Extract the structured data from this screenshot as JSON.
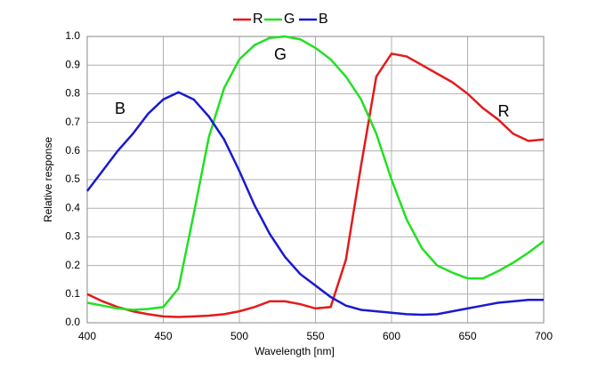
{
  "chart_data": {
    "type": "line",
    "x_label": "Wavelength [nm]",
    "y_label": "Relative response",
    "x": [
      400,
      410,
      420,
      430,
      440,
      450,
      460,
      470,
      480,
      490,
      500,
      510,
      520,
      530,
      540,
      550,
      560,
      570,
      580,
      590,
      600,
      610,
      620,
      630,
      640,
      650,
      660,
      670,
      680,
      690,
      700
    ],
    "series": [
      {
        "name": "R",
        "color": "#e41a1c",
        "values": [
          0.1,
          0.075,
          0.055,
          0.04,
          0.03,
          0.022,
          0.02,
          0.022,
          0.025,
          0.03,
          0.04,
          0.055,
          0.075,
          0.075,
          0.065,
          0.05,
          0.055,
          0.22,
          0.55,
          0.86,
          0.94,
          0.93,
          0.9,
          0.87,
          0.84,
          0.8,
          0.75,
          0.71,
          0.66,
          0.635,
          0.64
        ]
      },
      {
        "name": "G",
        "color": "#22e022",
        "values": [
          0.07,
          0.06,
          0.05,
          0.045,
          0.048,
          0.055,
          0.12,
          0.38,
          0.65,
          0.82,
          0.92,
          0.97,
          0.995,
          1.0,
          0.99,
          0.96,
          0.92,
          0.86,
          0.78,
          0.66,
          0.5,
          0.36,
          0.26,
          0.2,
          0.175,
          0.155,
          0.155,
          0.18,
          0.21,
          0.245,
          0.285
        ]
      },
      {
        "name": "B",
        "color": "#1a1ad0",
        "values": [
          0.46,
          0.53,
          0.6,
          0.66,
          0.73,
          0.78,
          0.805,
          0.78,
          0.72,
          0.64,
          0.53,
          0.41,
          0.31,
          0.23,
          0.17,
          0.13,
          0.09,
          0.06,
          0.045,
          0.04,
          0.035,
          0.03,
          0.028,
          0.03,
          0.04,
          0.05,
          0.06,
          0.07,
          0.075,
          0.08,
          0.08
        ]
      }
    ],
    "xlim": [
      400,
      700
    ],
    "xticks": [
      400,
      450,
      500,
      550,
      600,
      650,
      700
    ],
    "ylim": [
      0,
      1
    ],
    "yticks": [
      {
        "value": 0,
        "label": "0.0"
      },
      0.1,
      0.2,
      0.3,
      0.4,
      0.5,
      0.6,
      0.7,
      0.8,
      0.9,
      {
        "value": 1,
        "label": "1.0"
      }
    ],
    "grid": true,
    "legend": "top"
  }
}
